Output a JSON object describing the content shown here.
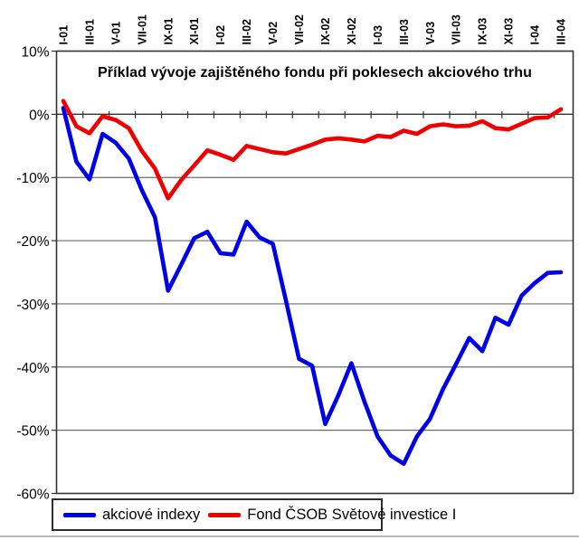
{
  "chart_data": {
    "type": "line",
    "title": "Příklad vývoje zajištěného fondu při poklesech akciového trhu",
    "grid": "horizontal",
    "legend_position": "bottom",
    "x_axis_note": "category labels shown every 2 months, rotated 90deg, placed above plot; ticks drawn on the 0% line",
    "x_tick_labels": [
      "I-01",
      "III-01",
      "V-01",
      "VII-01",
      "IX-01",
      "XI-01",
      "I-02",
      "III-02",
      "V-02",
      "VII-02",
      "IX-02",
      "XI-02",
      "I-03",
      "III-03",
      "V-03",
      "VII-03",
      "IX-03",
      "XI-03",
      "I-04",
      "III-04"
    ],
    "points_per_tick": 2,
    "n_points": 39,
    "y_ticks": [
      "10%",
      "0%",
      "-10%",
      "-20%",
      "-30%",
      "-40%",
      "-50%",
      "-60%"
    ],
    "y_tick_values": [
      10,
      0,
      -10,
      -20,
      -30,
      -40,
      -50,
      -60
    ],
    "ylim": [
      -60,
      10
    ],
    "ylabel": "",
    "xlabel": "",
    "series": [
      {
        "name": "akciové indexy",
        "color": "#0000E6",
        "values": [
          1,
          -7.5,
          -10.3,
          -3.1,
          -4.5,
          -7,
          -12,
          -16.3,
          -27.9,
          -23.8,
          -19.6,
          -18.6,
          -22,
          -22.2,
          -17,
          -19.5,
          -20.5,
          -29.5,
          -38.7,
          -39.8,
          -49,
          -44.5,
          -39.4,
          -45.5,
          -51,
          -54,
          -55.3,
          -51,
          -48.2,
          -43.5,
          -39.5,
          -35.4,
          -37.5,
          -32.2,
          -33.3,
          -28.7,
          -26.7,
          -25.1,
          -25
        ]
      },
      {
        "name": "Fond ČSOB Světové investice I",
        "color": "#EE0000",
        "values": [
          2.1,
          -1.9,
          -3,
          -0.3,
          -0.9,
          -2.2,
          -5.8,
          -8.6,
          -13.3,
          -10.4,
          -8.1,
          -5.7,
          -6.4,
          -7.2,
          -5,
          -5.5,
          -6,
          -6.2,
          -5.5,
          -4.8,
          -4,
          -3.8,
          -4,
          -4.3,
          -3.4,
          -3.6,
          -2.6,
          -3.1,
          -1.9,
          -1.6,
          -1.9,
          -1.8,
          -1.1,
          -2.2,
          -2.4,
          -1.5,
          -0.6,
          -0.5,
          0.8
        ]
      }
    ],
    "frame_color": "#333333",
    "gridline_color": "#6e6e6e"
  }
}
